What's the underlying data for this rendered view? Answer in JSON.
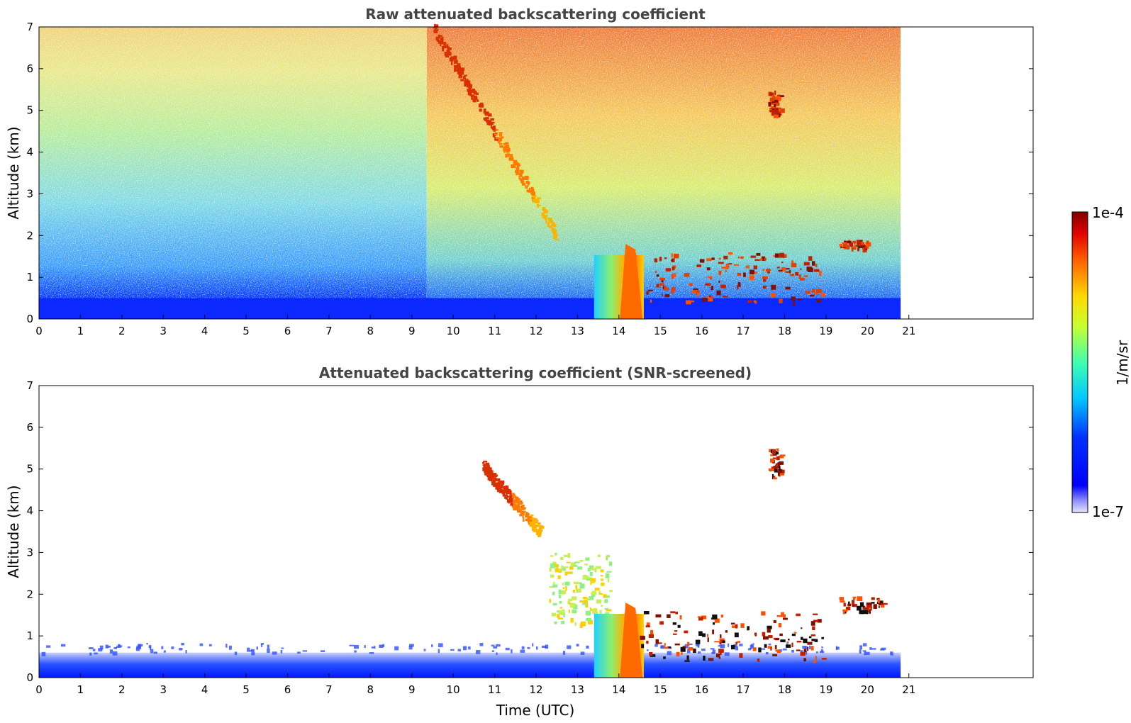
{
  "colors": {
    "background": "#ffffff",
    "title_text": "#444444",
    "colormap": "jet",
    "colormap_light_end": "#e6e6fa"
  },
  "colorbar": {
    "label": "1/m/sr",
    "max_label": "1e-4",
    "min_label": "1e-7",
    "scale": "log",
    "range": [
      1e-07,
      0.0001
    ]
  },
  "chart_data": [
    {
      "type": "heatmap",
      "title": "Raw attenuated backscattering coefficient",
      "xlabel": "",
      "ylabel": "Altitude (km)",
      "xlim": [
        0,
        24
      ],
      "ylim": [
        0,
        7
      ],
      "x_ticks": [
        "0",
        "1",
        "2",
        "3",
        "4",
        "5",
        "6",
        "7",
        "8",
        "9",
        "10",
        "11",
        "12",
        "13",
        "14",
        "15",
        "16",
        "17",
        "18",
        "19",
        "20",
        "21"
      ],
      "y_ticks": [
        "0",
        "1",
        "2",
        "3",
        "4",
        "5",
        "6",
        "7"
      ],
      "data_time_range": [
        0,
        20.8
      ],
      "features": [
        {
          "kind": "noisy background",
          "altitude_range": [
            0.5,
            7
          ],
          "value_trend": "increases with altitude"
        },
        {
          "kind": "boundary layer",
          "altitude_range": [
            0,
            0.5
          ],
          "time_range": [
            0,
            20.8
          ]
        },
        {
          "kind": "descending cloud streak",
          "time_range": [
            9.5,
            12.5
          ],
          "altitude_range": [
            2,
            7
          ]
        },
        {
          "kind": "dense cloud",
          "time_range": [
            13.4,
            14.6
          ],
          "altitude_range": [
            0,
            1.8
          ]
        },
        {
          "kind": "cloud patches",
          "time_range": [
            14.5,
            18.9
          ],
          "altitude_range": [
            0.4,
            1.6
          ]
        },
        {
          "kind": "cloud layer",
          "time_range": [
            19.3,
            20
          ],
          "altitude_range": [
            1.7,
            1.9
          ]
        },
        {
          "kind": "cloud",
          "time_range": [
            17.6,
            17.9
          ],
          "altitude_range": [
            4.9,
            5.5
          ]
        }
      ]
    },
    {
      "type": "heatmap",
      "title": "Attenuated backscattering coefficient (SNR-screened)",
      "xlabel": "Time (UTC)",
      "ylabel": "Altitude (km)",
      "xlim": [
        0,
        24
      ],
      "ylim": [
        0,
        7
      ],
      "x_ticks": [
        "0",
        "1",
        "2",
        "3",
        "4",
        "5",
        "6",
        "7",
        "8",
        "9",
        "10",
        "11",
        "12",
        "13",
        "14",
        "15",
        "16",
        "17",
        "18",
        "19",
        "20",
        "21"
      ],
      "y_ticks": [
        "0",
        "1",
        "2",
        "3",
        "4",
        "5",
        "6",
        "7"
      ],
      "data_time_range": [
        0,
        20.8
      ],
      "features": [
        {
          "kind": "boundary layer",
          "altitude_range": [
            0,
            0.6
          ],
          "time_range": [
            0,
            20.8
          ]
        },
        {
          "kind": "descending cloud streak",
          "time_range": [
            10.7,
            12.1
          ],
          "altitude_range": [
            3.5,
            5.1
          ]
        },
        {
          "kind": "cloud patches",
          "time_range": [
            12.3,
            13.8
          ],
          "altitude_range": [
            1.3,
            3
          ]
        },
        {
          "kind": "dense cloud",
          "time_range": [
            13.4,
            14.6
          ],
          "altitude_range": [
            0,
            1.8
          ]
        },
        {
          "kind": "cloud patches",
          "time_range": [
            14.5,
            18.9
          ],
          "altitude_range": [
            0.4,
            1.6
          ]
        },
        {
          "kind": "cloud layer",
          "time_range": [
            19.3,
            20.4
          ],
          "altitude_range": [
            1.6,
            1.95
          ]
        },
        {
          "kind": "cloud",
          "time_range": [
            17.6,
            17.9
          ],
          "altitude_range": [
            4.8,
            5.5
          ]
        }
      ]
    }
  ]
}
